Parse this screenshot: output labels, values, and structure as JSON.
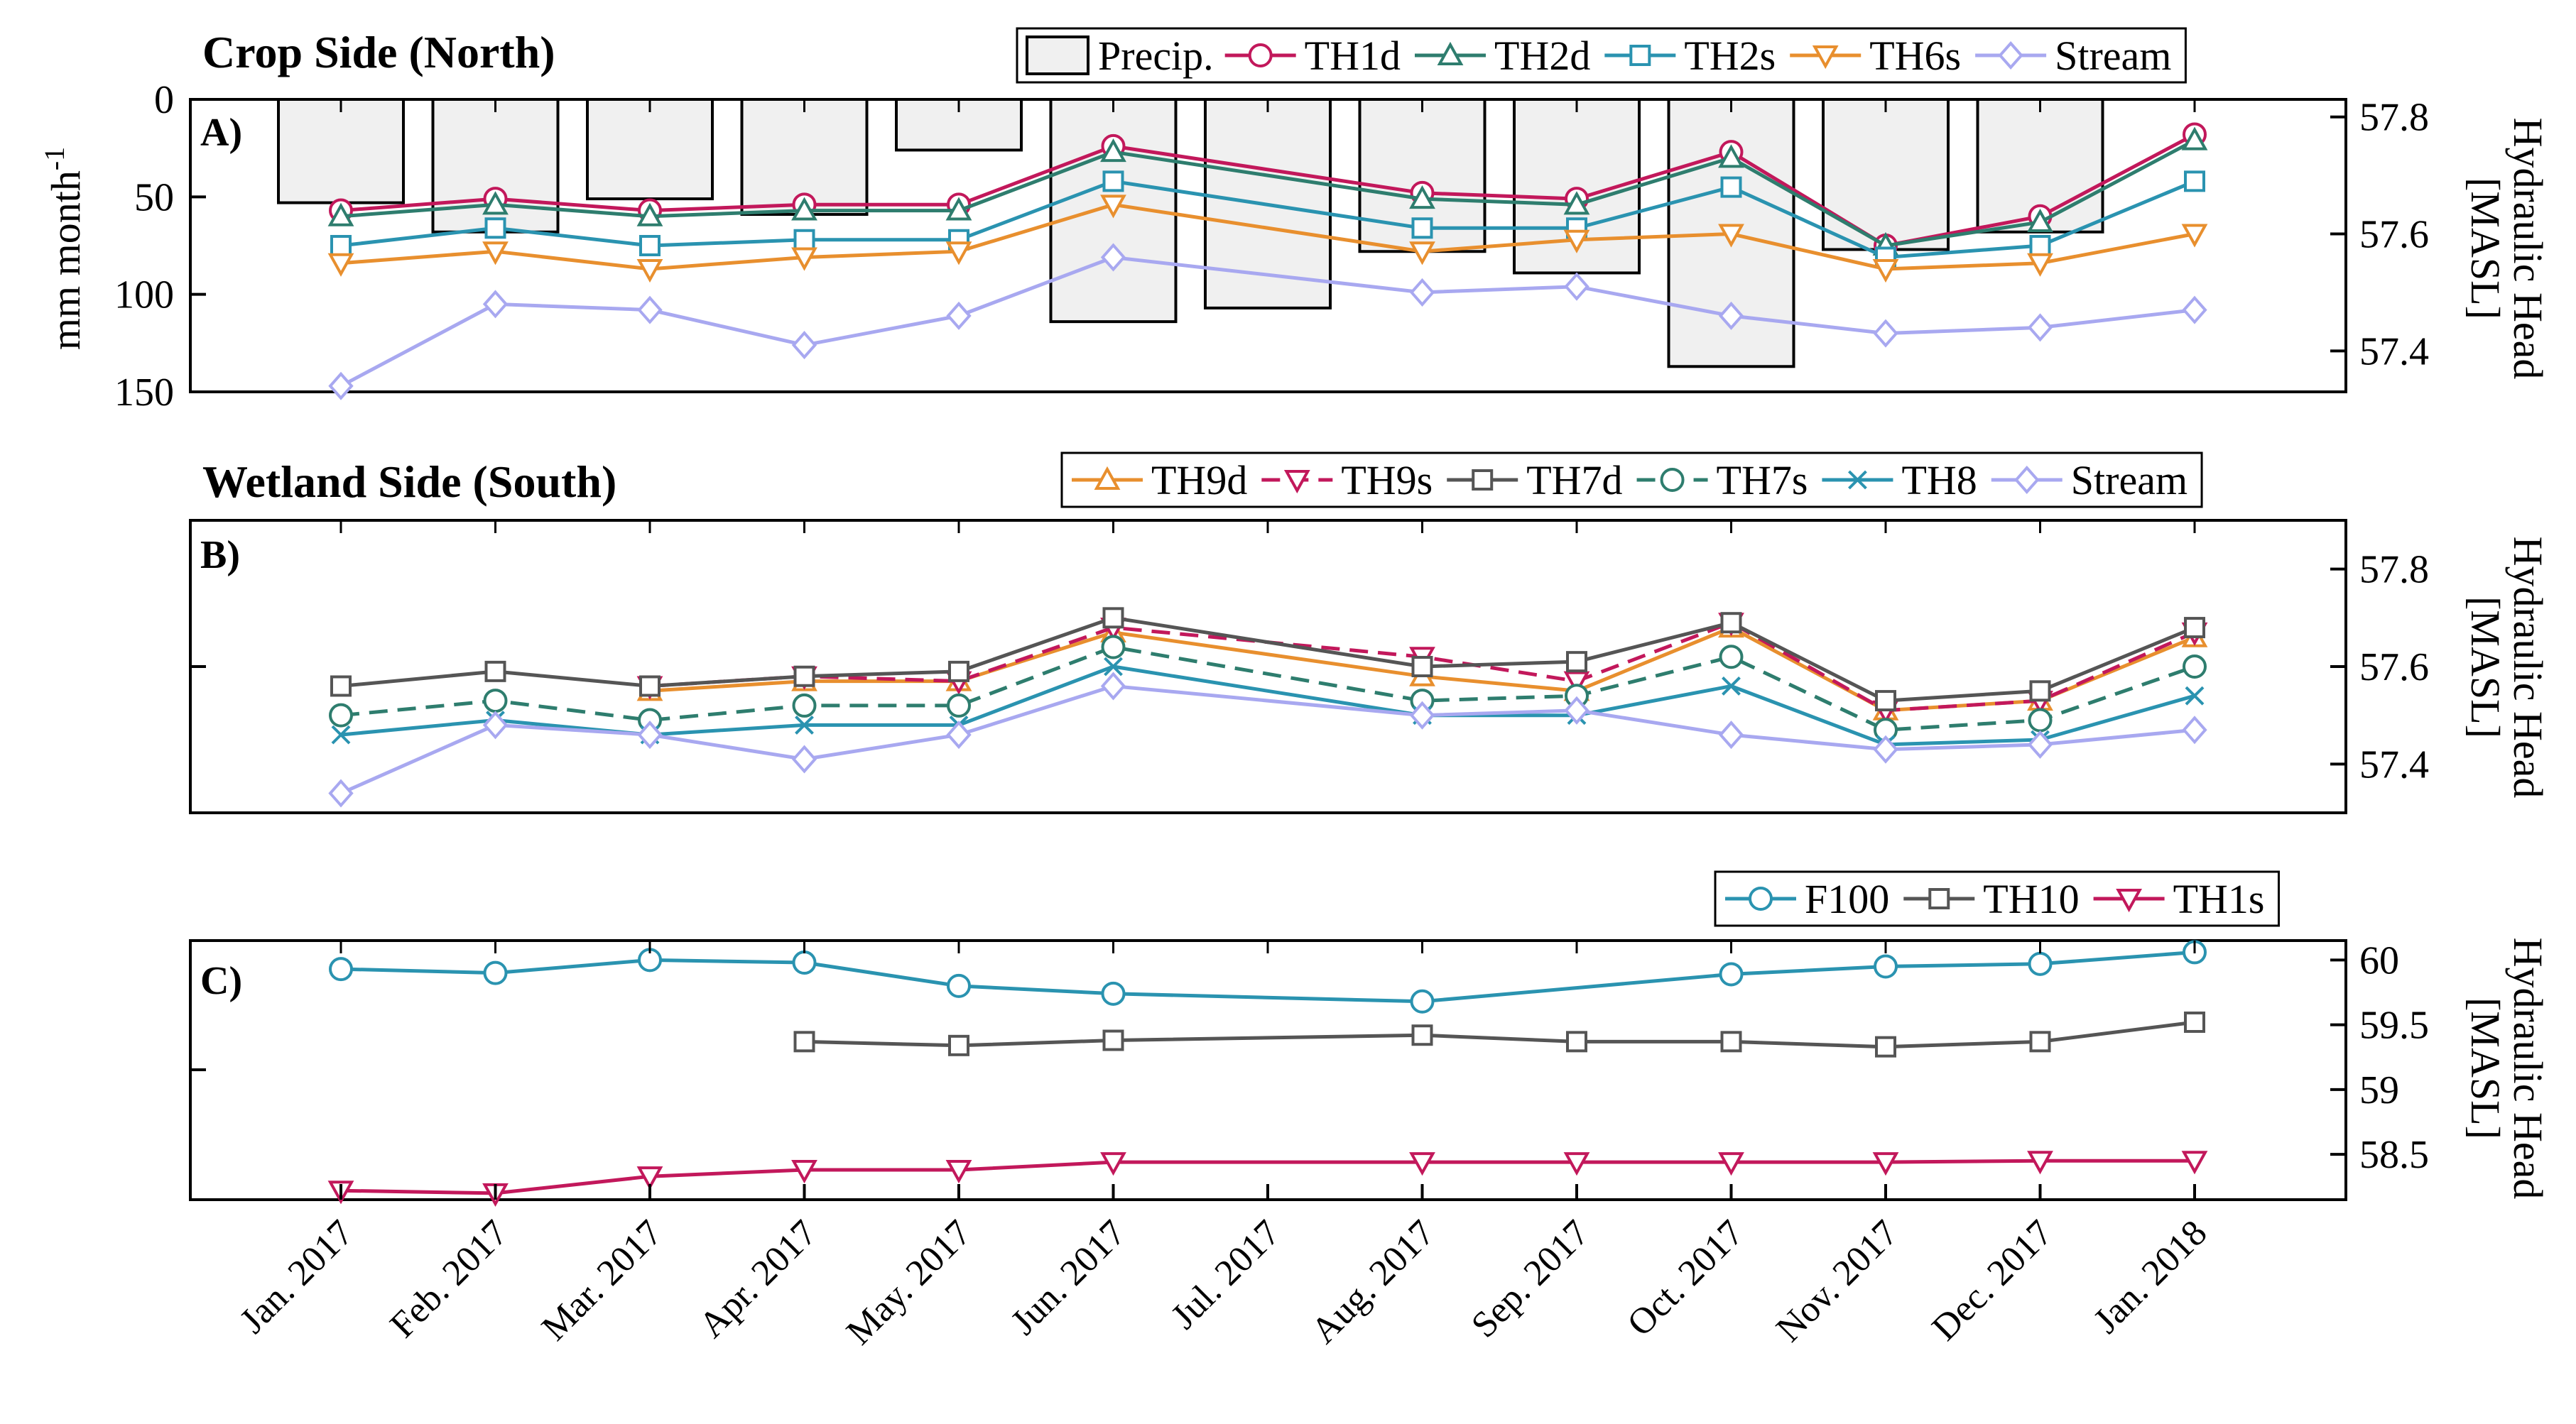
{
  "colors": {
    "TH1d": "#c2185b",
    "TH2d": "#2e7d6e",
    "TH2s": "#2a93b0",
    "TH6s": "#e88f2e",
    "Stream": "#a8a8f0",
    "TH9d": "#e88f2e",
    "TH9s": "#c2185b",
    "TH7d": "#555555",
    "TH7s": "#2e7d6e",
    "TH8": "#2a93b0",
    "F100": "#2a93b0",
    "TH10": "#555555",
    "TH1s": "#c2185b",
    "Precip": "#f0f0f0"
  },
  "chart_data": [
    {
      "type": "bar+line",
      "title": "Crop Side (North)",
      "panel_label": "A)",
      "months": [
        "Jan. 2017",
        "Feb. 2017",
        "Mar. 2017",
        "Apr. 2017",
        "May. 2017",
        "Jun. 2017",
        "Jul. 2017",
        "Aug. 2017",
        "Sep. 2017",
        "Oct. 2017",
        "Nov. 2017",
        "Dec. 2017",
        "Jan. 2018"
      ],
      "left_axis": {
        "label": "mm month",
        "label_sup": "-1",
        "ylim": [
          0,
          150
        ],
        "reversed": true,
        "ticks": [
          "0",
          "50",
          "100",
          "150"
        ]
      },
      "right_axis": {
        "label_line1": "Hydraulic Head",
        "label_line2": "[MASL]",
        "ylim": [
          57.33,
          57.83
        ],
        "ticks": [
          "57.4",
          "57.6",
          "57.8"
        ]
      },
      "precip": {
        "name": "Precip.",
        "values": [
          53,
          68,
          51,
          59,
          26,
          114,
          107,
          78,
          89,
          137,
          77,
          68
        ]
      },
      "series": [
        {
          "name": "TH1d",
          "marker": "circle",
          "dash": false,
          "values": [
            57.64,
            57.66,
            57.64,
            57.65,
            57.65,
            57.75,
            null,
            57.67,
            57.66,
            57.74,
            57.58,
            57.63,
            57.77
          ]
        },
        {
          "name": "TH2d",
          "marker": "triangle-up",
          "dash": false,
          "values": [
            57.63,
            57.65,
            57.63,
            57.64,
            57.64,
            57.74,
            null,
            57.66,
            57.65,
            57.73,
            57.58,
            57.62,
            57.76
          ]
        },
        {
          "name": "TH2s",
          "marker": "square",
          "dash": false,
          "values": [
            57.58,
            57.61,
            57.58,
            57.59,
            57.59,
            57.69,
            null,
            57.61,
            57.61,
            57.68,
            57.56,
            57.58,
            57.69
          ]
        },
        {
          "name": "TH6s",
          "marker": "triangle-down",
          "dash": false,
          "values": [
            57.55,
            57.57,
            57.54,
            57.56,
            57.57,
            57.65,
            null,
            57.57,
            57.59,
            57.6,
            57.54,
            57.55,
            57.6
          ]
        },
        {
          "name": "Stream",
          "marker": "diamond",
          "dash": false,
          "values": [
            57.34,
            57.48,
            57.47,
            57.41,
            57.46,
            57.56,
            null,
            57.5,
            57.51,
            57.46,
            57.43,
            57.44,
            57.47
          ]
        }
      ]
    },
    {
      "type": "line",
      "title": "Wetland Side (South)",
      "panel_label": "B)",
      "right_axis": {
        "label_line1": "Hydraulic Head",
        "label_line2": "[MASL]",
        "ylim": [
          57.3,
          57.9
        ],
        "ticks": [
          "57.4",
          "57.6",
          "57.8"
        ]
      },
      "series": [
        {
          "name": "TH9d",
          "marker": "triangle-up",
          "dash": false,
          "values": [
            null,
            null,
            57.55,
            57.57,
            57.57,
            57.67,
            null,
            57.58,
            57.55,
            57.68,
            57.51,
            57.53,
            57.66
          ]
        },
        {
          "name": "TH9s",
          "marker": "triangle-down",
          "dash": true,
          "values": [
            null,
            null,
            57.56,
            57.58,
            57.57,
            57.68,
            null,
            57.62,
            57.57,
            57.69,
            57.51,
            57.53,
            57.67
          ]
        },
        {
          "name": "TH7d",
          "marker": "square",
          "dash": false,
          "values": [
            57.56,
            57.59,
            57.56,
            57.58,
            57.59,
            57.7,
            null,
            57.6,
            57.61,
            57.69,
            57.53,
            57.55,
            57.68
          ]
        },
        {
          "name": "TH7s",
          "marker": "circle",
          "dash": true,
          "values": [
            57.5,
            57.53,
            57.49,
            57.52,
            57.52,
            57.64,
            null,
            57.53,
            57.54,
            57.62,
            57.47,
            57.49,
            57.6
          ]
        },
        {
          "name": "TH8",
          "marker": "cross",
          "dash": false,
          "values": [
            57.46,
            57.49,
            57.46,
            57.48,
            57.48,
            57.6,
            null,
            57.5,
            57.5,
            57.56,
            57.44,
            57.45,
            57.54
          ]
        },
        {
          "name": "Stream",
          "marker": "diamond",
          "dash": false,
          "values": [
            57.34,
            57.48,
            57.46,
            57.41,
            57.46,
            57.56,
            null,
            57.5,
            57.51,
            57.46,
            57.43,
            57.44,
            57.47
          ]
        }
      ]
    },
    {
      "type": "line",
      "title": "",
      "panel_label": "C)",
      "right_axis": {
        "label_line1": "Hydraulic Head",
        "label_line2": "[MASL]",
        "ylim": [
          58.15,
          60.15
        ],
        "ticks": [
          "58.5",
          "59",
          "59.5",
          "60"
        ]
      },
      "series": [
        {
          "name": "F100",
          "marker": "circle",
          "dash": false,
          "values": [
            59.93,
            59.9,
            60.0,
            59.98,
            59.8,
            59.74,
            null,
            59.68,
            null,
            59.89,
            59.95,
            59.97,
            60.06
          ]
        },
        {
          "name": "TH10",
          "marker": "square",
          "dash": false,
          "values": [
            null,
            null,
            null,
            59.37,
            59.34,
            59.38,
            null,
            59.42,
            59.37,
            59.37,
            59.33,
            59.37,
            59.52
          ]
        },
        {
          "name": "TH1s",
          "marker": "triangle-down",
          "dash": false,
          "values": [
            58.22,
            58.2,
            58.33,
            58.38,
            58.38,
            58.44,
            null,
            58.44,
            58.44,
            58.44,
            58.44,
            58.45,
            58.45
          ]
        }
      ]
    }
  ]
}
